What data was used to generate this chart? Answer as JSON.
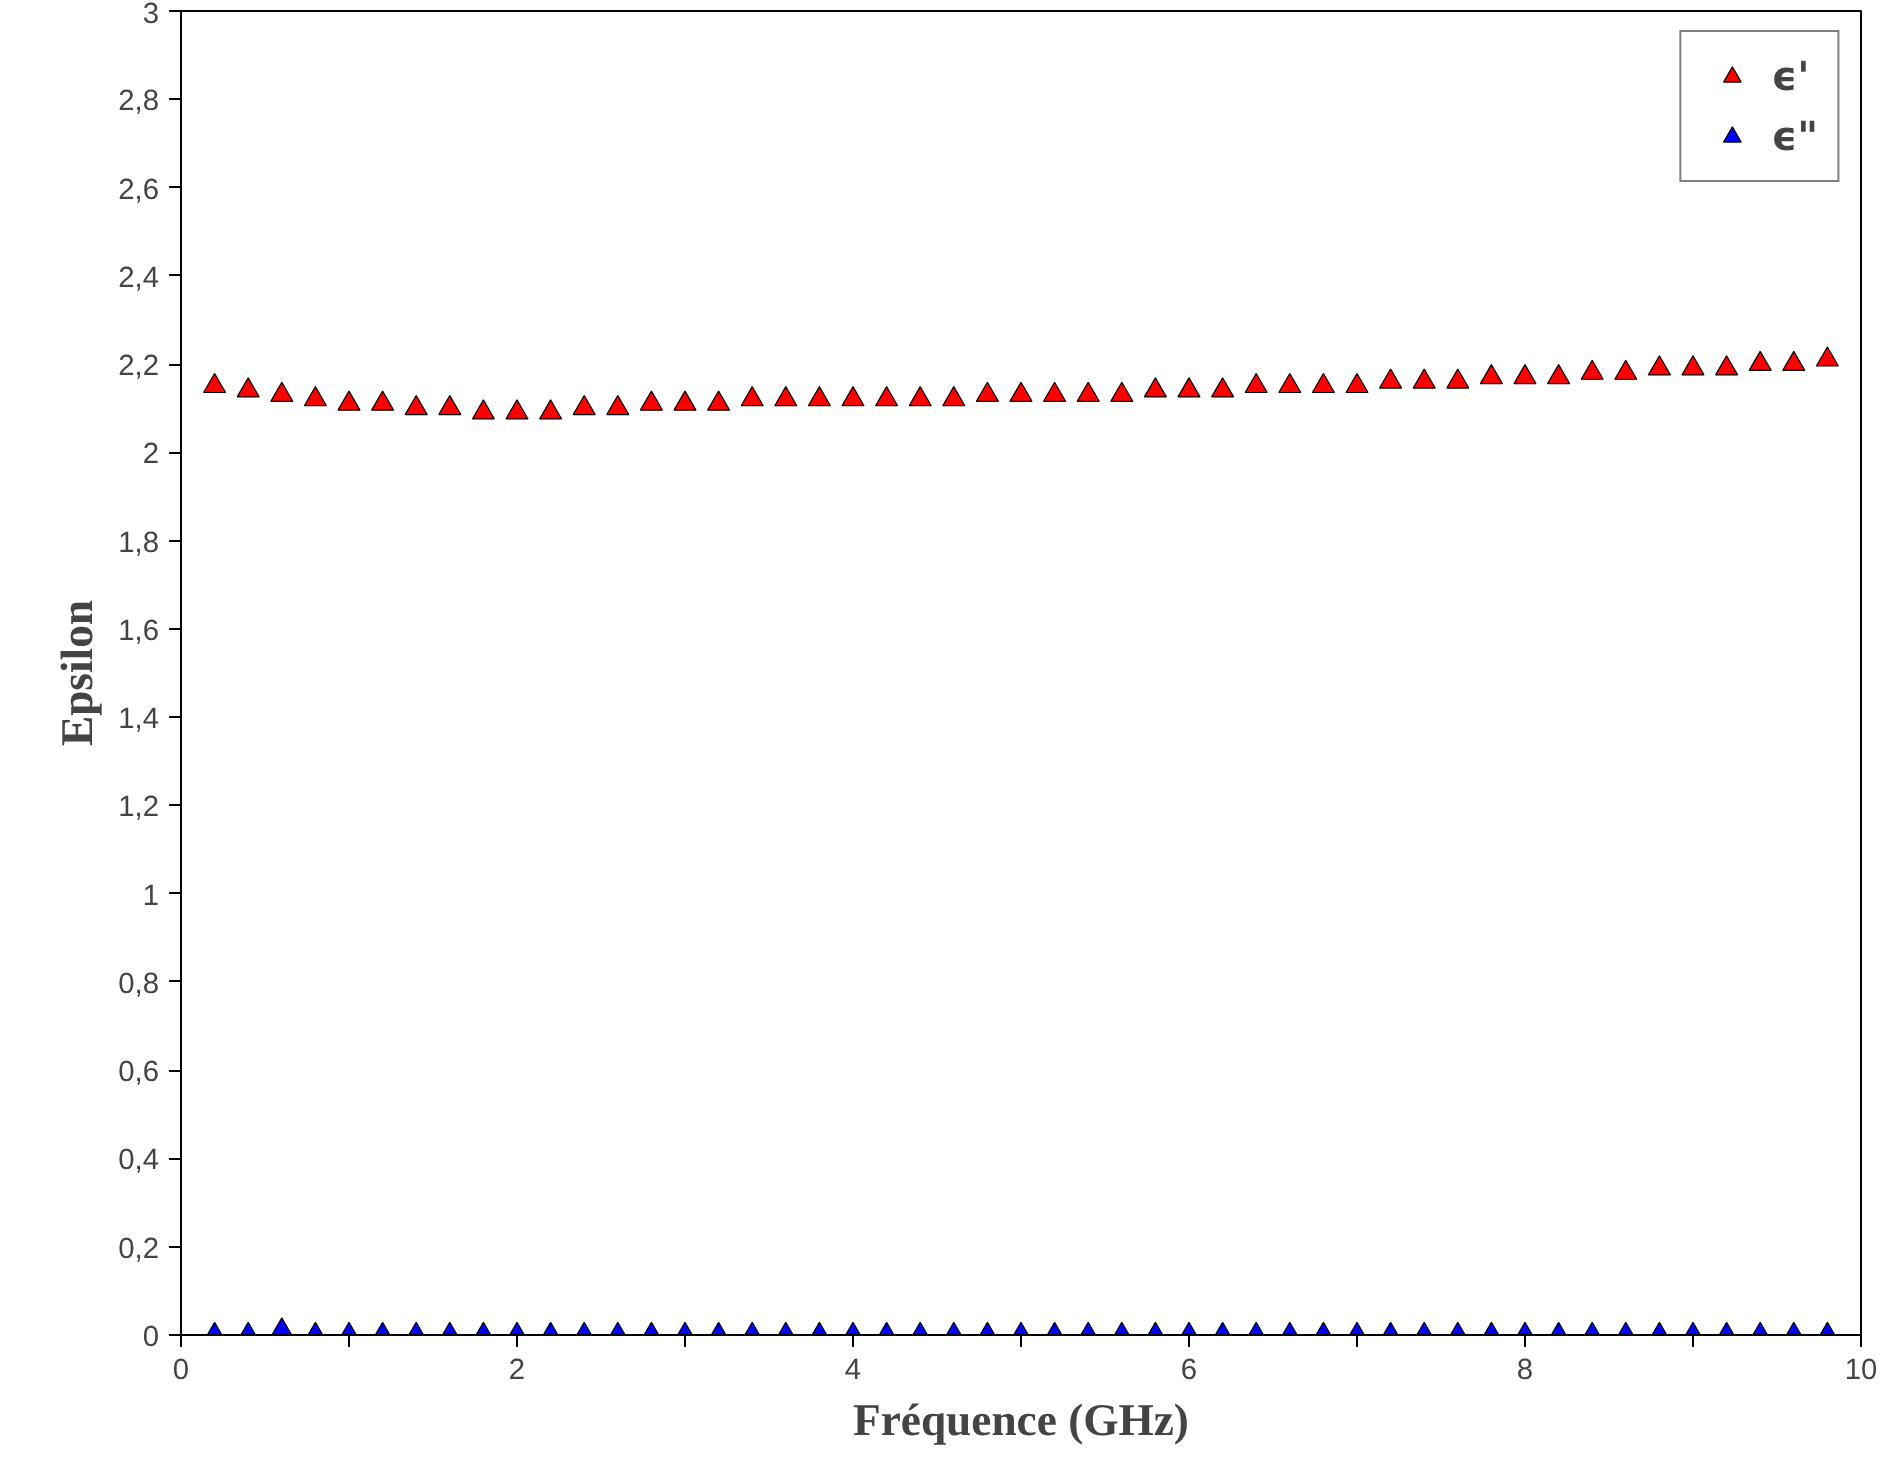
{
  "chart_data": {
    "type": "scatter",
    "xlabel": "Fréquence (GHz)",
    "ylabel": "Epsilon",
    "x": [
      0.2,
      0.4,
      0.6,
      0.8,
      1.0,
      1.2,
      1.4,
      1.6,
      1.8,
      2.0,
      2.2,
      2.4,
      2.6,
      2.8,
      3.0,
      3.2,
      3.4,
      3.6,
      3.8,
      4.0,
      4.2,
      4.4,
      4.6,
      4.8,
      5.0,
      5.2,
      5.4,
      5.6,
      5.8,
      6.0,
      6.2,
      6.4,
      6.6,
      6.8,
      7.0,
      7.2,
      7.4,
      7.6,
      7.8,
      8.0,
      8.2,
      8.4,
      8.6,
      8.8,
      9.0,
      9.2,
      9.4,
      9.6,
      9.8
    ],
    "series": [
      {
        "name": "ϵ'",
        "color": "#ff0000",
        "values": [
          2.15,
          2.14,
          2.13,
          2.12,
          2.11,
          2.11,
          2.1,
          2.1,
          2.09,
          2.09,
          2.09,
          2.1,
          2.1,
          2.11,
          2.11,
          2.11,
          2.12,
          2.12,
          2.12,
          2.12,
          2.12,
          2.12,
          2.12,
          2.13,
          2.13,
          2.13,
          2.13,
          2.13,
          2.14,
          2.14,
          2.14,
          2.15,
          2.15,
          2.15,
          2.15,
          2.16,
          2.16,
          2.16,
          2.17,
          2.17,
          2.17,
          2.18,
          2.18,
          2.19,
          2.19,
          2.19,
          2.2,
          2.2,
          2.21
        ]
      },
      {
        "name": "ϵ\"",
        "color": "#0000ff",
        "values": [
          0,
          0,
          0.01,
          0,
          0,
          0,
          0,
          0,
          0,
          0,
          0,
          0,
          0,
          0,
          0,
          0,
          0,
          0,
          0,
          0,
          0,
          0,
          0,
          0,
          0,
          0,
          0,
          0,
          0,
          0,
          0,
          0,
          0,
          0,
          0,
          0,
          0,
          0,
          0,
          0,
          0,
          0,
          0,
          0,
          0,
          0,
          0,
          0,
          0
        ]
      }
    ],
    "xlim": [
      0,
      10
    ],
    "ylim": [
      0,
      3
    ],
    "xticks": [
      0,
      {
        "value": 1,
        "label": null
      },
      2,
      {
        "value": 3,
        "label": null
      },
      4,
      {
        "value": 5,
        "label": null
      },
      6,
      {
        "value": 7,
        "label": null
      },
      8,
      {
        "value": 9,
        "label": null
      },
      10
    ],
    "yticks": [
      {
        "value": 0,
        "label": "0"
      },
      {
        "value": 0.2,
        "label": "0,2"
      },
      {
        "value": 0.4,
        "label": "0,4"
      },
      {
        "value": 0.6,
        "label": "0,6"
      },
      {
        "value": 0.8,
        "label": "0,8"
      },
      {
        "value": 1,
        "label": "1"
      },
      {
        "value": 1.2,
        "label": "1,2"
      },
      {
        "value": 1.4,
        "label": "1,4"
      },
      {
        "value": 1.6,
        "label": "1,6"
      },
      {
        "value": 1.8,
        "label": "1,8"
      },
      {
        "value": 2,
        "label": "2"
      },
      {
        "value": 2.2,
        "label": "2,2"
      },
      {
        "value": 2.4,
        "label": "2,4"
      },
      {
        "value": 2.6,
        "label": "2,6"
      },
      {
        "value": 2.8,
        "label": "2,8"
      },
      {
        "value": 3,
        "label": "3"
      }
    ],
    "marker": "triangle",
    "legend": "top right"
  }
}
